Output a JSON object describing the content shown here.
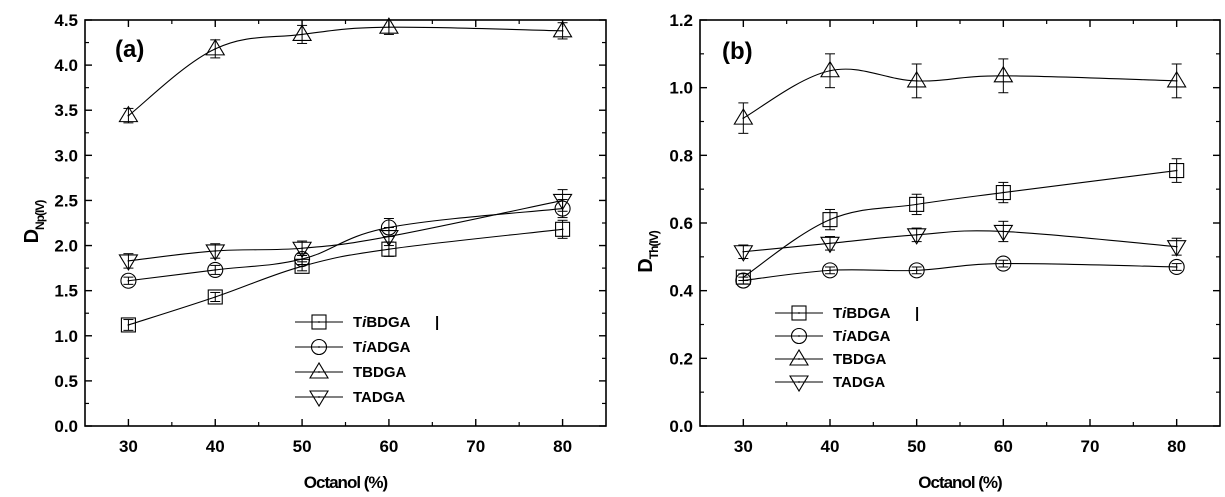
{
  "chart_data": [
    {
      "type": "line",
      "panel_label": "(a)",
      "xlabel": "Octanol (%)",
      "ylabel": "D",
      "ylabel_sub": "Np(IV)",
      "xlim": [
        25,
        85
      ],
      "ylim": [
        0.0,
        4.5
      ],
      "xticks": [
        30,
        40,
        50,
        60,
        70,
        80
      ],
      "yticks": [
        "0.0",
        "0.5",
        "1.0",
        "1.5",
        "2.0",
        "2.5",
        "3.0",
        "3.5",
        "4.0",
        "4.5"
      ],
      "legend_position": "lower-right",
      "legend_marker": "|",
      "series": [
        {
          "name_prefix": "T",
          "name_italic": "i",
          "name_suffix": "BDGA",
          "marker": "square",
          "x": [
            30,
            40,
            50,
            60,
            80
          ],
          "y": [
            1.12,
            1.43,
            1.77,
            1.96,
            2.18
          ],
          "err": [
            0.06,
            0.05,
            0.05,
            0.08,
            0.1
          ]
        },
        {
          "name_prefix": "T",
          "name_italic": "i",
          "name_suffix": "ADGA",
          "marker": "circle",
          "x": [
            30,
            40,
            50,
            60,
            80
          ],
          "y": [
            1.61,
            1.73,
            1.85,
            2.2,
            2.41
          ],
          "err": [
            0.04,
            0.05,
            0.06,
            0.1,
            0.1
          ]
        },
        {
          "name_prefix": "TBDGA",
          "name_italic": "",
          "name_suffix": "",
          "marker": "triangle-up",
          "x": [
            30,
            40,
            50,
            60,
            80
          ],
          "y": [
            3.44,
            4.18,
            4.34,
            4.42,
            4.38
          ],
          "err": [
            0.08,
            0.1,
            0.1,
            0.08,
            0.09
          ]
        },
        {
          "name_prefix": "TADGA",
          "name_italic": "",
          "name_suffix": "",
          "marker": "triangle-down",
          "x": [
            30,
            40,
            50,
            60,
            80
          ],
          "y": [
            1.83,
            1.94,
            1.97,
            2.1,
            2.5
          ],
          "err": [
            0.08,
            0.08,
            0.08,
            0.1,
            0.12
          ]
        }
      ]
    },
    {
      "type": "line",
      "panel_label": "(b)",
      "xlabel": "Octanol (%)",
      "ylabel": "D",
      "ylabel_sub": "Th(IV)",
      "xlim": [
        25,
        85
      ],
      "ylim": [
        0.0,
        1.2
      ],
      "xticks": [
        30,
        40,
        50,
        60,
        70,
        80
      ],
      "yticks": [
        "0.0",
        "0.2",
        "0.4",
        "0.6",
        "0.8",
        "1.0",
        "1.2"
      ],
      "legend_position": "lower-left",
      "legend_marker": "|",
      "series": [
        {
          "name_prefix": "T",
          "name_italic": "i",
          "name_suffix": "BDGA",
          "marker": "square",
          "x": [
            30,
            40,
            50,
            60,
            80
          ],
          "y": [
            0.44,
            0.61,
            0.655,
            0.69,
            0.755
          ],
          "err": [
            0.01,
            0.03,
            0.03,
            0.03,
            0.035
          ]
        },
        {
          "name_prefix": "T",
          "name_italic": "i",
          "name_suffix": "ADGA",
          "marker": "circle",
          "x": [
            30,
            40,
            50,
            60,
            80
          ],
          "y": [
            0.43,
            0.46,
            0.46,
            0.48,
            0.47
          ],
          "err": [
            0.01,
            0.01,
            0.01,
            0.01,
            0.01
          ]
        },
        {
          "name_prefix": "TBDGA",
          "name_italic": "",
          "name_suffix": "",
          "marker": "triangle-up",
          "x": [
            30,
            40,
            50,
            60,
            80
          ],
          "y": [
            0.91,
            1.05,
            1.02,
            1.035,
            1.02
          ],
          "err": [
            0.045,
            0.05,
            0.05,
            0.05,
            0.05
          ]
        },
        {
          "name_prefix": "TADGA",
          "name_italic": "",
          "name_suffix": "",
          "marker": "triangle-down",
          "x": [
            30,
            40,
            50,
            60,
            80
          ],
          "y": [
            0.515,
            0.54,
            0.565,
            0.575,
            0.53
          ],
          "err": [
            0.02,
            0.02,
            0.02,
            0.03,
            0.025
          ]
        }
      ]
    }
  ]
}
